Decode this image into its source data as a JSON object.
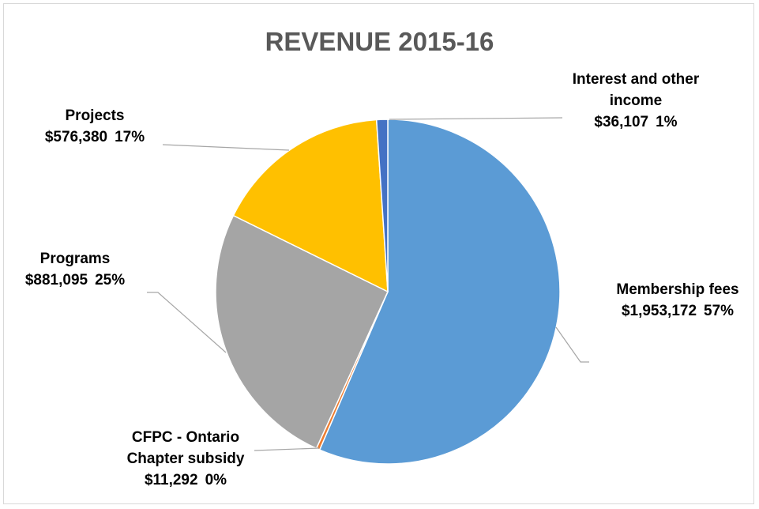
{
  "chart_data": {
    "type": "pie",
    "title": "REVENUE 2015-16",
    "categories": [
      "Membership fees",
      "CFPC - Ontario Chapter subsidy",
      "Programs",
      "Projects",
      "Interest and other income"
    ],
    "values": [
      1953172,
      11292,
      881095,
      576380,
      36107
    ],
    "value_labels": [
      "$1,953,172",
      "$11,292",
      "$881,095",
      "$576,380",
      "$36,107"
    ],
    "percent_labels": [
      "57%",
      "0%",
      "25%",
      "17%",
      "1%"
    ],
    "colors": [
      "#5b9bd5",
      "#ed7d31",
      "#a5a5a5",
      "#ffc000",
      "#4472c4"
    ]
  }
}
